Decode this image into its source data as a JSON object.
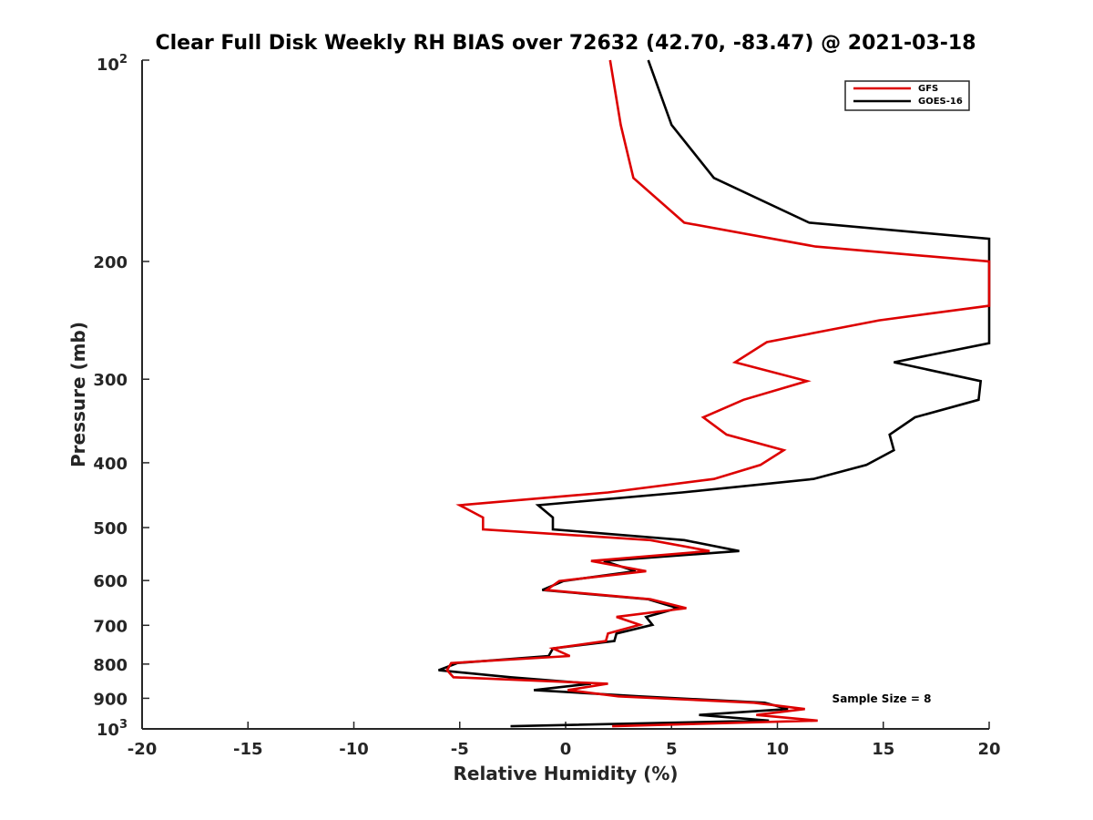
{
  "chart_data": {
    "type": "line",
    "title": "Clear Full Disk Weekly RH BIAS over 72632 (42.70, -83.47) @ 2021-03-18",
    "xlabel": "Relative Humidity (%)",
    "ylabel": "Pressure (mb)",
    "xlim": [
      -20,
      20
    ],
    "ylim": [
      100,
      1000
    ],
    "y_scale": "log",
    "y_reversed": true,
    "grid": false,
    "legend_position": "top-right",
    "x_ticks": [
      "-20",
      "-15",
      "-10",
      "-5",
      "0",
      "5",
      "10",
      "15",
      "20"
    ],
    "y_ticks": [
      "200",
      "300",
      "400",
      "500",
      "600",
      "700",
      "800",
      "900"
    ],
    "y_tick_bottom_base": "10",
    "y_tick_bottom_exp": "3",
    "y_tick_top_base": "10",
    "y_tick_top_exp": "2",
    "annotation": "Sample Size = 8",
    "series": [
      {
        "name": "GFS",
        "color": "#dd0000",
        "points": [
          [
            2.1,
            100
          ],
          [
            2.6,
            125
          ],
          [
            3.2,
            150
          ],
          [
            5.6,
            175
          ],
          [
            11.8,
            190
          ],
          [
            20.0,
            200
          ],
          [
            20.0,
            233
          ],
          [
            14.8,
            245
          ],
          [
            9.5,
            264
          ],
          [
            8.0,
            283
          ],
          [
            11.4,
            302
          ],
          [
            8.4,
            322
          ],
          [
            6.5,
            342
          ],
          [
            7.6,
            363
          ],
          [
            10.3,
            383
          ],
          [
            9.2,
            403
          ],
          [
            7.0,
            423
          ],
          [
            2.0,
            443
          ],
          [
            -5.0,
            463
          ],
          [
            -3.9,
            483
          ],
          [
            -3.9,
            503
          ],
          [
            4.0,
            522
          ],
          [
            6.8,
            542
          ],
          [
            1.2,
            561
          ],
          [
            3.8,
            581
          ],
          [
            -0.3,
            601
          ],
          [
            -0.9,
            620
          ],
          [
            4.0,
            640
          ],
          [
            5.7,
            660
          ],
          [
            2.4,
            680
          ],
          [
            3.5,
            699
          ],
          [
            2.0,
            720
          ],
          [
            1.9,
            739
          ],
          [
            -0.6,
            758
          ],
          [
            0.2,
            778
          ],
          [
            -5.4,
            797
          ],
          [
            -5.6,
            817
          ],
          [
            -5.3,
            837
          ],
          [
            2.0,
            856
          ],
          [
            0.1,
            875
          ],
          [
            2.5,
            894
          ],
          [
            8.9,
            914
          ],
          [
            11.3,
            934
          ],
          [
            9.0,
            953
          ],
          [
            11.9,
            972
          ],
          [
            2.2,
            991
          ]
        ]
      },
      {
        "name": "GOES-16",
        "color": "#000000",
        "points": [
          [
            3.9,
            100
          ],
          [
            5.0,
            125
          ],
          [
            7.0,
            150
          ],
          [
            11.5,
            175
          ],
          [
            20.0,
            185
          ],
          [
            20.0,
            265
          ],
          [
            15.5,
            283
          ],
          [
            19.6,
            302
          ],
          [
            19.5,
            322
          ],
          [
            16.5,
            342
          ],
          [
            15.3,
            363
          ],
          [
            15.5,
            383
          ],
          [
            14.2,
            403
          ],
          [
            11.7,
            423
          ],
          [
            5.5,
            443
          ],
          [
            -1.3,
            463
          ],
          [
            -0.6,
            483
          ],
          [
            -0.6,
            503
          ],
          [
            5.6,
            522
          ],
          [
            8.2,
            542
          ],
          [
            1.8,
            561
          ],
          [
            3.3,
            581
          ],
          [
            -0.1,
            601
          ],
          [
            -1.1,
            620
          ],
          [
            3.9,
            640
          ],
          [
            5.3,
            660
          ],
          [
            3.8,
            680
          ],
          [
            4.1,
            699
          ],
          [
            2.4,
            720
          ],
          [
            2.3,
            739
          ],
          [
            -0.6,
            758
          ],
          [
            -0.8,
            778
          ],
          [
            -5.1,
            797
          ],
          [
            -6.0,
            817
          ],
          [
            -2.6,
            837
          ],
          [
            1.2,
            856
          ],
          [
            -1.5,
            875
          ],
          [
            3.5,
            894
          ],
          [
            9.4,
            914
          ],
          [
            10.5,
            934
          ],
          [
            6.3,
            953
          ],
          [
            9.6,
            972
          ],
          [
            -2.6,
            991
          ]
        ]
      }
    ]
  }
}
